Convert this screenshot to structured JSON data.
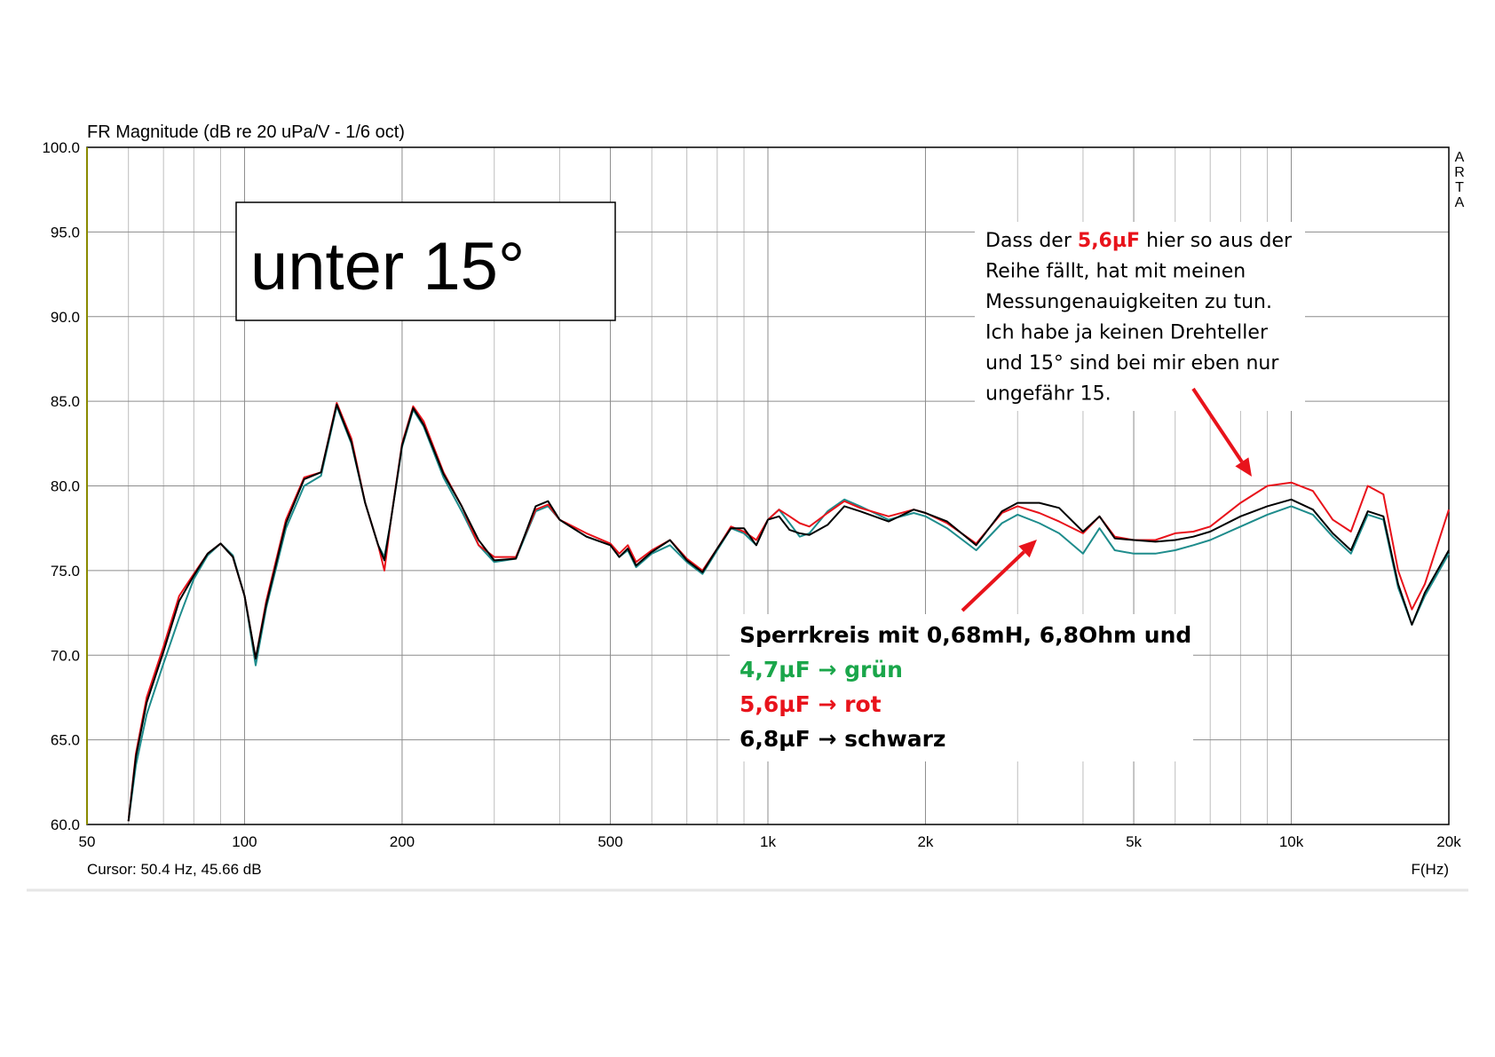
{
  "chart_data": {
    "type": "line",
    "title": "FR Magnitude (dB re 20 uPa/V - 1/6 oct)",
    "xlabel": "F(Hz)",
    "ylabel": "",
    "xscale": "log",
    "xlim": [
      50,
      20000
    ],
    "ylim": [
      60,
      100
    ],
    "grid": true,
    "x_ticks": [
      50,
      100,
      200,
      500,
      1000,
      2000,
      5000,
      10000,
      20000
    ],
    "x_tick_labels": [
      "50",
      "100",
      "200",
      "500",
      "1k",
      "2k",
      "5k",
      "10k",
      "20k"
    ],
    "y_ticks": [
      60,
      65,
      70,
      75,
      80,
      85,
      90,
      95,
      100
    ],
    "y_tick_labels": [
      "60.0",
      "65.0",
      "70.0",
      "75.0",
      "80.0",
      "85.0",
      "90.0",
      "95.0",
      "100.0"
    ],
    "watermark": "ARTA",
    "cursor_readout": "Cursor: 50.4 Hz, 45.66 dB",
    "x": [
      60,
      62,
      65,
      70,
      75,
      80,
      85,
      90,
      95,
      100,
      105,
      110,
      120,
      130,
      140,
      150,
      160,
      170,
      180,
      185,
      190,
      200,
      210,
      220,
      240,
      260,
      280,
      300,
      330,
      360,
      380,
      400,
      450,
      500,
      520,
      540,
      560,
      600,
      650,
      700,
      750,
      800,
      850,
      900,
      950,
      1000,
      1050,
      1100,
      1150,
      1200,
      1300,
      1400,
      1500,
      1700,
      1900,
      2000,
      2200,
      2500,
      2800,
      3000,
      3300,
      3600,
      4000,
      4300,
      4600,
      5000,
      5500,
      6000,
      6500,
      7000,
      8000,
      9000,
      10000,
      11000,
      12000,
      13000,
      14000,
      15000,
      16000,
      17000,
      18000,
      20000
    ],
    "series": [
      {
        "color": "#1e8c8c",
        "values": [
          60.2,
          63.5,
          66.5,
          69.5,
          72.2,
          74.5,
          75.9,
          76.6,
          75.9,
          73.5,
          69.4,
          72.8,
          77.5,
          80.0,
          80.6,
          84.7,
          82.5,
          79.0,
          76.5,
          75.8,
          77.8,
          82.3,
          84.5,
          83.5,
          80.5,
          78.5,
          76.5,
          75.5,
          75.7,
          78.5,
          78.8,
          78.0,
          77.0,
          76.5,
          75.8,
          76.2,
          75.2,
          76.0,
          76.5,
          75.5,
          74.8,
          76.2,
          77.5,
          77.2,
          76.5,
          78.0,
          78.6,
          77.8,
          77.0,
          77.2,
          78.5,
          79.2,
          78.8,
          78.0,
          78.4,
          78.2,
          77.5,
          76.2,
          77.8,
          78.3,
          77.8,
          77.2,
          76.0,
          77.5,
          76.2,
          76.0,
          76.0,
          76.2,
          76.5,
          76.8,
          77.6,
          78.3,
          78.8,
          78.3,
          77.0,
          76.0,
          78.3,
          78.0,
          74.0,
          71.8,
          73.5,
          76.0
        ]
      },
      {
        "color": "#e8131b",
        "values": [
          60.2,
          64.2,
          67.5,
          70.5,
          73.5,
          74.8,
          76.0,
          76.6,
          75.8,
          73.5,
          69.8,
          73.2,
          78.0,
          80.5,
          80.8,
          84.9,
          82.8,
          79.0,
          76.5,
          75.0,
          77.8,
          82.5,
          84.7,
          83.8,
          80.8,
          78.8,
          76.5,
          75.8,
          75.8,
          78.6,
          78.9,
          78.0,
          77.2,
          76.6,
          76.0,
          76.5,
          75.5,
          76.2,
          76.8,
          75.7,
          75.0,
          76.3,
          77.6,
          77.3,
          76.8,
          78.0,
          78.6,
          78.2,
          77.8,
          77.6,
          78.4,
          79.1,
          78.7,
          78.2,
          78.6,
          78.4,
          77.8,
          76.6,
          78.4,
          78.8,
          78.4,
          77.9,
          77.2,
          78.2,
          77.0,
          76.8,
          76.8,
          77.2,
          77.3,
          77.6,
          79.0,
          80.0,
          80.2,
          79.7,
          78.0,
          77.3,
          80.0,
          79.5,
          75.0,
          72.7,
          74.2,
          78.6
        ]
      },
      {
        "color": "#000000",
        "values": [
          60.2,
          64.0,
          67.2,
          70.2,
          73.2,
          74.7,
          76.0,
          76.6,
          75.8,
          73.5,
          69.8,
          73.0,
          77.8,
          80.4,
          80.8,
          84.8,
          82.6,
          79.0,
          76.5,
          75.6,
          77.8,
          82.4,
          84.6,
          83.6,
          80.7,
          78.8,
          76.8,
          75.6,
          75.7,
          78.8,
          79.1,
          78.0,
          77.0,
          76.5,
          75.8,
          76.3,
          75.3,
          76.1,
          76.8,
          75.6,
          74.9,
          76.3,
          77.5,
          77.5,
          76.5,
          78.0,
          78.2,
          77.4,
          77.2,
          77.1,
          77.7,
          78.8,
          78.5,
          77.9,
          78.6,
          78.4,
          77.9,
          76.5,
          78.5,
          79.0,
          79.0,
          78.7,
          77.3,
          78.2,
          76.9,
          76.8,
          76.7,
          76.8,
          77.0,
          77.3,
          78.2,
          78.8,
          79.2,
          78.6,
          77.2,
          76.2,
          78.5,
          78.2,
          74.2,
          71.8,
          73.7,
          76.2
        ]
      }
    ]
  },
  "annotations": {
    "angle_label": "unter 15°",
    "note_lines": [
      [
        {
          "text": "Dass der ",
          "color": "#000000"
        },
        {
          "text": "5,6µF",
          "color": "#e8131b",
          "bold": true
        },
        {
          "text": " hier so aus der",
          "color": "#000000"
        }
      ],
      [
        {
          "text": "Reihe fällt, hat mit meinen",
          "color": "#000000"
        }
      ],
      [
        {
          "text": "Messungenauigkeiten zu tun.",
          "color": "#000000"
        }
      ],
      [
        {
          "text": "Ich habe ja keinen Drehteller",
          "color": "#000000"
        }
      ],
      [
        {
          "text": "und 15° sind bei mir eben nur",
          "color": "#000000"
        }
      ],
      [
        {
          "text": "ungefähr 15.",
          "color": "#000000"
        }
      ]
    ],
    "legend_lines": [
      {
        "text": "Sperrkreis mit 0,68mH, 6,8Ohm und",
        "color": "#000000"
      },
      {
        "text": "4,7µF → grün",
        "color": "#1aa64a"
      },
      {
        "text": "5,6µF → rot",
        "color": "#e8131b"
      },
      {
        "text": "6,8µF → schwarz",
        "color": "#000000"
      }
    ],
    "arrow_color": "#e8131b"
  }
}
